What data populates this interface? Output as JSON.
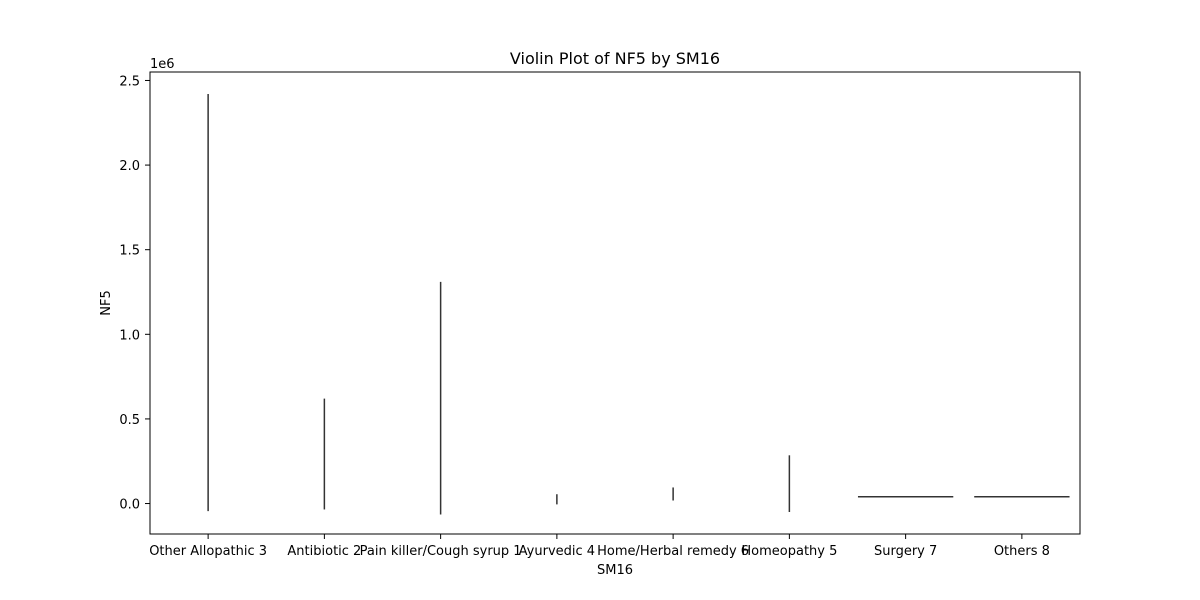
{
  "chart_data": {
    "type": "violin",
    "title": "Violin Plot of NF5 by SM16",
    "xlabel": "SM16",
    "ylabel": "NF5",
    "y_offset_label": "1e6",
    "y_scale": 1000000,
    "ylim": [
      -180000,
      2550000
    ],
    "y_ticks": [
      0,
      500000,
      1000000,
      1500000,
      2000000,
      2500000
    ],
    "y_tick_labels": [
      "0.0",
      "0.5",
      "1.0",
      "1.5",
      "2.0",
      "2.5"
    ],
    "categories": [
      "Other Allopathic 3",
      "Antibiotic 2",
      "Pain killer/Cough syrup 1",
      "Ayurvedic 4",
      "Home/Herbal remedy 6",
      "Homeopathy 5",
      "Surgery 7",
      "Others 8"
    ],
    "violins": [
      {
        "category": "Other Allopathic 3",
        "min": -45000,
        "max": 2420000
      },
      {
        "category": "Antibiotic 2",
        "min": -35000,
        "max": 620000
      },
      {
        "category": "Pain killer/Cough syrup 1",
        "min": -65000,
        "max": 1310000
      },
      {
        "category": "Ayurvedic 4",
        "min": -5000,
        "max": 55000
      },
      {
        "category": "Home/Herbal remedy 6",
        "min": 18000,
        "max": 95000
      },
      {
        "category": "Homeopathy 5",
        "min": -50000,
        "max": 285000
      },
      {
        "category": "Surgery 7",
        "value": 40000,
        "flat": true
      },
      {
        "category": "Others 8",
        "value": 40000,
        "flat": true
      }
    ],
    "grid": false,
    "line_color": "#333333",
    "axis_color": "#000000"
  }
}
